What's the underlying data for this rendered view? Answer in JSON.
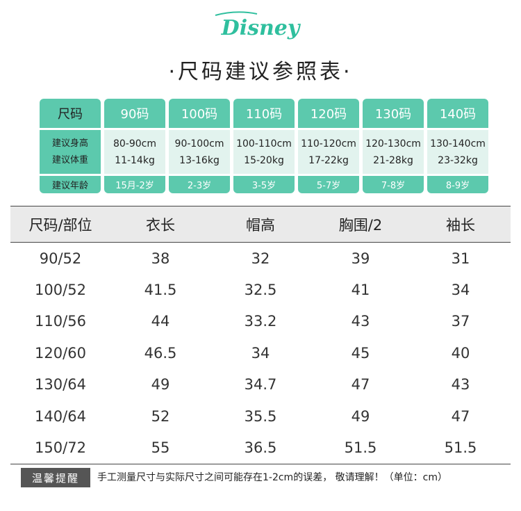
{
  "brand": {
    "logo_text": "Disney",
    "color": "#2fbf9e"
  },
  "title": "·尺码建议参照表·",
  "guide": {
    "label_column": {
      "header": "尺码",
      "height_label": "建议身高",
      "weight_label": "建议体重",
      "age_label": "建议年龄"
    },
    "sizes": [
      {
        "size": "90码",
        "height": "80-90cm",
        "weight": "11-14kg",
        "age": "15月-2岁"
      },
      {
        "size": "100码",
        "height": "90-100cm",
        "weight": "13-16kg",
        "age": "2-3岁"
      },
      {
        "size": "110码",
        "height": "100-110cm",
        "weight": "15-20kg",
        "age": "3-5岁"
      },
      {
        "size": "120码",
        "height": "110-120cm",
        "weight": "17-22kg",
        "age": "5-7岁"
      },
      {
        "size": "130码",
        "height": "120-130cm",
        "weight": "21-28kg",
        "age": "7-8岁"
      },
      {
        "size": "140码",
        "height": "130-140cm",
        "weight": "23-32kg",
        "age": "8-9岁"
      }
    ],
    "accent_color": "#5cc9ad",
    "light_color": "#e2f3ee"
  },
  "measurements": {
    "headers": [
      "尺码/部位",
      "衣长",
      "帽高",
      "胸围/2",
      "袖长"
    ],
    "rows": [
      [
        "90/52",
        "38",
        "32",
        "39",
        "31"
      ],
      [
        "100/52",
        "41.5",
        "32.5",
        "41",
        "34"
      ],
      [
        "110/56",
        "44",
        "33.2",
        "43",
        "37"
      ],
      [
        "120/60",
        "46.5",
        "34",
        "45",
        "40"
      ],
      [
        "130/64",
        "49",
        "34.7",
        "47",
        "43"
      ],
      [
        "140/64",
        "52",
        "35.5",
        "49",
        "47"
      ],
      [
        "150/72",
        "55",
        "36.5",
        "51.5",
        "51.5"
      ]
    ]
  },
  "footer": {
    "badge": "温馨提醒",
    "note": "手工测量尺寸与实际尺寸之间可能存在1-2cm的误差，  敬请理解！（单位：cm）"
  }
}
